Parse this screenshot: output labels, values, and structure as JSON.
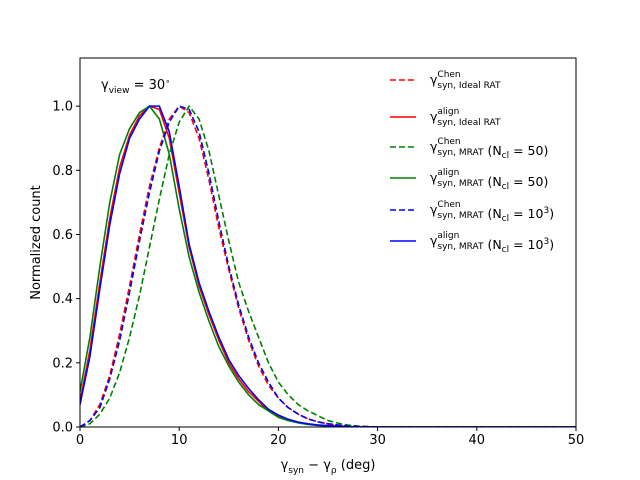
{
  "chart_data": {
    "type": "line",
    "title": "",
    "xlabel": {
      "base": "γ",
      "sub1": "syn",
      "minus": " − γ",
      "sub2": "ρ",
      "unit": " (deg)"
    },
    "ylabel": "Normalized count",
    "xlim": [
      0,
      50
    ],
    "ylim": [
      0,
      1.15
    ],
    "x_ticks": [
      0,
      10,
      20,
      30,
      40,
      50
    ],
    "y_ticks": [
      0.0,
      0.2,
      0.4,
      0.6,
      0.8,
      1.0
    ],
    "grid": false,
    "legend_position": "top-right",
    "annotation": {
      "base": "γ",
      "sub": "view",
      "rest": " = 30",
      "sup": "∘"
    },
    "series": [
      {
        "name": "syn,Chen,Ideal RAT",
        "label": {
          "base": "γ",
          "sup": "Chen",
          "sub": "syn, Ideal RAT",
          "suffix": ""
        },
        "color": "#ff0000",
        "dashed": true,
        "x": [
          0,
          1,
          2,
          3,
          4,
          5,
          6,
          7,
          8,
          9,
          10,
          11,
          12,
          13,
          14,
          15,
          16,
          17,
          18,
          19,
          20,
          21,
          22,
          23,
          24,
          25,
          26,
          27,
          28,
          29,
          30,
          35,
          40,
          45,
          50
        ],
        "y": [
          0.0,
          0.02,
          0.07,
          0.16,
          0.29,
          0.44,
          0.6,
          0.75,
          0.87,
          0.96,
          1.0,
          0.98,
          0.9,
          0.77,
          0.62,
          0.49,
          0.37,
          0.27,
          0.19,
          0.13,
          0.09,
          0.06,
          0.04,
          0.025,
          0.016,
          0.01,
          0.006,
          0.003,
          0.002,
          0.001,
          0.0,
          0.0,
          0.0,
          0.0,
          0.0
        ]
      },
      {
        "name": "syn,align,Ideal RAT",
        "label": {
          "base": "γ",
          "sup": "align",
          "sub": "syn, Ideal RAT",
          "suffix": ""
        },
        "color": "#ff0000",
        "dashed": false,
        "x": [
          0,
          1,
          2,
          3,
          4,
          5,
          6,
          7,
          8,
          9,
          10,
          11,
          12,
          13,
          14,
          15,
          16,
          17,
          18,
          19,
          20,
          21,
          22,
          23,
          24,
          25,
          26,
          27,
          28,
          29,
          30,
          35,
          40,
          45,
          50
        ],
        "y": [
          0.08,
          0.24,
          0.45,
          0.65,
          0.81,
          0.91,
          0.97,
          1.0,
          0.99,
          0.9,
          0.73,
          0.56,
          0.44,
          0.35,
          0.27,
          0.2,
          0.15,
          0.11,
          0.08,
          0.05,
          0.035,
          0.022,
          0.014,
          0.009,
          0.006,
          0.004,
          0.002,
          0.001,
          0.0,
          0.0,
          0.0,
          0.0,
          0.0,
          0.0,
          0.0
        ]
      },
      {
        "name": "syn,Chen,MRAT Ncl=50",
        "label": {
          "base": "γ",
          "sup": "Chen",
          "sub": "syn, MRAT",
          "suffix": " (N|cl| = 50)"
        },
        "color": "#008000",
        "dashed": true,
        "x": [
          0,
          1,
          2,
          3,
          4,
          5,
          6,
          7,
          8,
          9,
          10,
          11,
          12,
          13,
          14,
          15,
          16,
          17,
          18,
          19,
          20,
          21,
          22,
          23,
          24,
          25,
          26,
          27,
          28,
          29,
          30,
          35,
          40,
          45,
          50
        ],
        "y": [
          0.0,
          0.01,
          0.04,
          0.09,
          0.17,
          0.28,
          0.41,
          0.56,
          0.71,
          0.85,
          0.95,
          1.0,
          0.96,
          0.86,
          0.72,
          0.58,
          0.45,
          0.36,
          0.28,
          0.2,
          0.14,
          0.1,
          0.07,
          0.05,
          0.035,
          0.02,
          0.012,
          0.006,
          0.003,
          0.001,
          0.0,
          0.0,
          0.0,
          0.0,
          0.0
        ]
      },
      {
        "name": "syn,align,MRAT Ncl=50",
        "label": {
          "base": "γ",
          "sup": "align",
          "sub": "syn, MRAT",
          "suffix": " (N|cl| = 50)"
        },
        "color": "#008000",
        "dashed": false,
        "x": [
          0,
          1,
          2,
          3,
          4,
          5,
          6,
          7,
          8,
          9,
          10,
          11,
          12,
          13,
          14,
          15,
          16,
          17,
          18,
          19,
          20,
          21,
          22,
          23,
          24,
          25,
          26,
          27,
          28,
          29,
          30,
          35,
          40,
          45,
          50
        ],
        "y": [
          0.11,
          0.28,
          0.5,
          0.7,
          0.85,
          0.93,
          0.98,
          1.0,
          0.96,
          0.85,
          0.68,
          0.53,
          0.42,
          0.33,
          0.25,
          0.19,
          0.14,
          0.1,
          0.07,
          0.05,
          0.03,
          0.02,
          0.013,
          0.008,
          0.005,
          0.003,
          0.002,
          0.001,
          0.0,
          0.0,
          0.0,
          0.0,
          0.0,
          0.0,
          0.0
        ]
      },
      {
        "name": "syn,Chen,MRAT Ncl=1e3",
        "label": {
          "base": "γ",
          "sup": "Chen",
          "sub": "syn, MRAT",
          "suffix": " (N|cl| = 10^3^)"
        },
        "color": "#0000ff",
        "dashed": true,
        "x": [
          0,
          1,
          2,
          3,
          4,
          5,
          6,
          7,
          8,
          9,
          10,
          11,
          12,
          13,
          14,
          15,
          16,
          17,
          18,
          19,
          20,
          21,
          22,
          23,
          24,
          25,
          26,
          27,
          28,
          29,
          30,
          35,
          40,
          45,
          50
        ],
        "y": [
          0.0,
          0.02,
          0.06,
          0.15,
          0.27,
          0.42,
          0.58,
          0.73,
          0.86,
          0.95,
          1.0,
          0.99,
          0.92,
          0.79,
          0.64,
          0.5,
          0.38,
          0.28,
          0.2,
          0.14,
          0.09,
          0.06,
          0.04,
          0.025,
          0.016,
          0.01,
          0.006,
          0.003,
          0.002,
          0.001,
          0.0,
          0.0,
          0.0,
          0.0,
          0.0
        ]
      },
      {
        "name": "syn,align,MRAT Ncl=1e3",
        "label": {
          "base": "γ",
          "sup": "align",
          "sub": "syn, MRAT",
          "suffix": " (N|cl| = 10^3^)"
        },
        "color": "#0000ff",
        "dashed": false,
        "x": [
          0,
          1,
          2,
          3,
          4,
          5,
          6,
          7,
          8,
          9,
          10,
          11,
          12,
          13,
          14,
          15,
          16,
          17,
          18,
          19,
          20,
          21,
          22,
          23,
          24,
          25,
          26,
          27,
          28,
          29,
          30,
          35,
          40,
          45,
          50
        ],
        "y": [
          0.07,
          0.22,
          0.43,
          0.63,
          0.79,
          0.9,
          0.96,
          1.0,
          1.0,
          0.92,
          0.75,
          0.57,
          0.45,
          0.36,
          0.28,
          0.21,
          0.16,
          0.12,
          0.085,
          0.055,
          0.037,
          0.024,
          0.015,
          0.01,
          0.006,
          0.004,
          0.002,
          0.001,
          0.0,
          0.0,
          0.0,
          0.0,
          0.0,
          0.0,
          0.0
        ]
      }
    ]
  }
}
